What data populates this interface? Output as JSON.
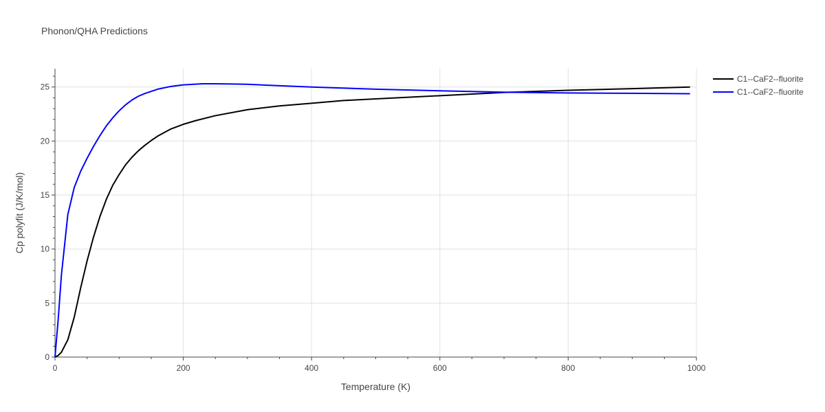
{
  "chart_data": {
    "type": "line",
    "title": "Phonon/QHA Predictions",
    "xlabel": "Temperature (K)",
    "ylabel": "Cp polyfit (J/K/mol)",
    "xlim": [
      0,
      1000
    ],
    "ylim": [
      0,
      26.7
    ],
    "xticks": [
      0,
      200,
      400,
      600,
      800,
      1000
    ],
    "yticks": [
      0,
      5,
      10,
      15,
      20,
      25
    ],
    "grid": true,
    "legend_position": "top-right",
    "series": [
      {
        "name": "C1--CaF2--fluorite",
        "color": "#000000",
        "x": [
          0,
          5,
          10,
          20,
          30,
          40,
          50,
          60,
          70,
          80,
          90,
          100,
          110,
          120,
          130,
          140,
          150,
          160,
          180,
          200,
          220,
          250,
          300,
          350,
          400,
          450,
          500,
          600,
          700,
          800,
          900,
          990
        ],
        "y": [
          0,
          0.15,
          0.45,
          1.6,
          3.7,
          6.4,
          8.9,
          11.1,
          13.0,
          14.6,
          15.9,
          16.9,
          17.8,
          18.5,
          19.1,
          19.6,
          20.05,
          20.45,
          21.1,
          21.55,
          21.9,
          22.35,
          22.9,
          23.25,
          23.5,
          23.75,
          23.9,
          24.2,
          24.5,
          24.7,
          24.85,
          25.0
        ]
      },
      {
        "name": "C1--CaF2--fluorite",
        "color": "#0000ff",
        "x": [
          0,
          5,
          10,
          20,
          30,
          40,
          50,
          60,
          70,
          80,
          90,
          100,
          110,
          120,
          130,
          140,
          160,
          180,
          200,
          230,
          250,
          280,
          300,
          400,
          500,
          600,
          700,
          800,
          900,
          990
        ],
        "y": [
          0,
          3.5,
          7.6,
          13.2,
          15.7,
          17.2,
          18.4,
          19.5,
          20.5,
          21.4,
          22.15,
          22.8,
          23.35,
          23.8,
          24.15,
          24.4,
          24.8,
          25.05,
          25.2,
          25.3,
          25.3,
          25.28,
          25.25,
          25.0,
          24.8,
          24.65,
          24.52,
          24.45,
          24.42,
          24.38
        ]
      }
    ]
  }
}
